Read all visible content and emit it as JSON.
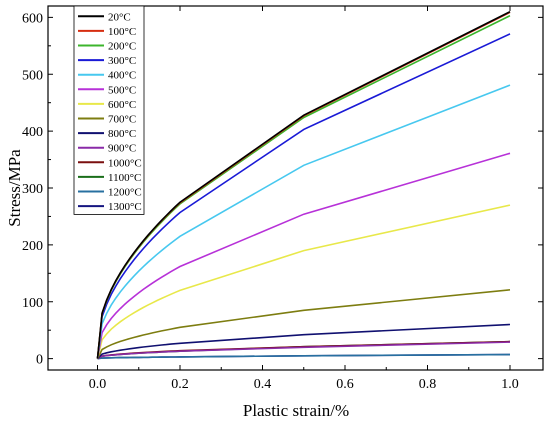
{
  "chart_data": {
    "type": "line",
    "title": "",
    "xlabel": "Plastic strain/%",
    "ylabel": "Stress/MPa",
    "xlim": [
      -0.12,
      1.08
    ],
    "ylim": [
      -20,
      620
    ],
    "xticks": [
      "0.0",
      "0.2",
      "0.4",
      "0.6",
      "0.8",
      "1.0"
    ],
    "yticks": [
      "0",
      "100",
      "200",
      "300",
      "400",
      "500",
      "600"
    ],
    "xtick_values": [
      0,
      0.2,
      0.4,
      0.6,
      0.8,
      1.0
    ],
    "ytick_values": [
      0,
      100,
      200,
      300,
      400,
      500,
      600
    ],
    "grid": false,
    "legend_position": "top-left",
    "x": [
      0,
      0.2,
      0.5,
      1.0
    ],
    "series": [
      {
        "name": "20°C",
        "color": "#000000",
        "values": [
          30,
          275,
          428,
          610
        ]
      },
      {
        "name": "100°C",
        "color": "#d62d10",
        "values": [
          30,
          274,
          427,
          609
        ]
      },
      {
        "name": "200°C",
        "color": "#3cb52c",
        "values": [
          29,
          272,
          424,
          603
        ]
      },
      {
        "name": "300°C",
        "color": "#1a1ad6",
        "values": [
          27,
          257,
          403,
          571
        ]
      },
      {
        "name": "400°C",
        "color": "#47c8ef",
        "values": [
          22,
          215,
          340,
          481
        ]
      },
      {
        "name": "500°C",
        "color": "#b731d8",
        "values": [
          16,
          162,
          254,
          361
        ]
      },
      {
        "name": "600°C",
        "color": "#e8e84a",
        "values": [
          11,
          120,
          190,
          270
        ]
      },
      {
        "name": "700°C",
        "color": "#7d7d10",
        "values": [
          6,
          55,
          85,
          121
        ]
      },
      {
        "name": "800°C",
        "color": "#101070",
        "values": [
          3,
          27,
          42,
          60
        ]
      },
      {
        "name": "900°C",
        "color": "#8a2aa8",
        "values": [
          2,
          13,
          20,
          29
        ]
      },
      {
        "name": "1000°C",
        "color": "#7a0f0f",
        "values": [
          2,
          14,
          21,
          30
        ]
      },
      {
        "name": "1100°C",
        "color": "#1a6e1a",
        "values": [
          2,
          13,
          21,
          30
        ]
      },
      {
        "name": "1200°C",
        "color": "#2870a0",
        "values": [
          0.5,
          3,
          5,
          7
        ]
      },
      {
        "name": "1300°C",
        "color": "#141480",
        "values": [
          0.5,
          3,
          5,
          7
        ]
      }
    ]
  }
}
